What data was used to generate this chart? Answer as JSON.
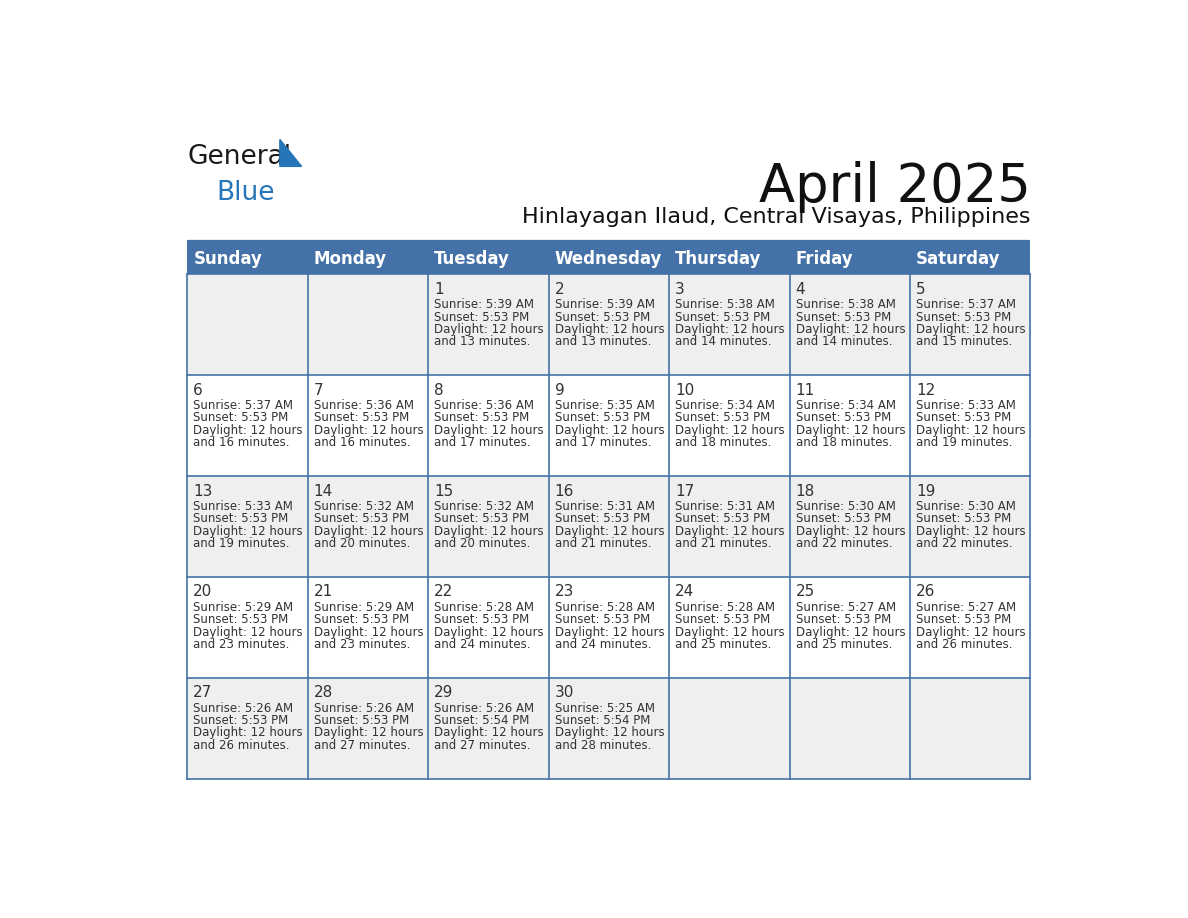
{
  "title": "April 2025",
  "subtitle": "Hinlayagan Ilaud, Central Visayas, Philippines",
  "header_bg_color": "#4472A8",
  "header_text_color": "#FFFFFF",
  "cell_bg_even": "#EFEFEF",
  "cell_bg_odd": "#FFFFFF",
  "border_color": "#4472A8",
  "grid_line_color": "#4472A8",
  "text_color": "#333333",
  "logo_black": "#1a1a1a",
  "logo_blue": "#2575B8",
  "tri_blue": "#2575B8",
  "day_headers": [
    "Sunday",
    "Monday",
    "Tuesday",
    "Wednesday",
    "Thursday",
    "Friday",
    "Saturday"
  ],
  "days": [
    {
      "date": 1,
      "col": 2,
      "row": 0,
      "sunrise": "5:39 AM",
      "sunset": "5:53 PM",
      "daylight_hours": 12,
      "daylight_minutes": 13
    },
    {
      "date": 2,
      "col": 3,
      "row": 0,
      "sunrise": "5:39 AM",
      "sunset": "5:53 PM",
      "daylight_hours": 12,
      "daylight_minutes": 13
    },
    {
      "date": 3,
      "col": 4,
      "row": 0,
      "sunrise": "5:38 AM",
      "sunset": "5:53 PM",
      "daylight_hours": 12,
      "daylight_minutes": 14
    },
    {
      "date": 4,
      "col": 5,
      "row": 0,
      "sunrise": "5:38 AM",
      "sunset": "5:53 PM",
      "daylight_hours": 12,
      "daylight_minutes": 14
    },
    {
      "date": 5,
      "col": 6,
      "row": 0,
      "sunrise": "5:37 AM",
      "sunset": "5:53 PM",
      "daylight_hours": 12,
      "daylight_minutes": 15
    },
    {
      "date": 6,
      "col": 0,
      "row": 1,
      "sunrise": "5:37 AM",
      "sunset": "5:53 PM",
      "daylight_hours": 12,
      "daylight_minutes": 16
    },
    {
      "date": 7,
      "col": 1,
      "row": 1,
      "sunrise": "5:36 AM",
      "sunset": "5:53 PM",
      "daylight_hours": 12,
      "daylight_minutes": 16
    },
    {
      "date": 8,
      "col": 2,
      "row": 1,
      "sunrise": "5:36 AM",
      "sunset": "5:53 PM",
      "daylight_hours": 12,
      "daylight_minutes": 17
    },
    {
      "date": 9,
      "col": 3,
      "row": 1,
      "sunrise": "5:35 AM",
      "sunset": "5:53 PM",
      "daylight_hours": 12,
      "daylight_minutes": 17
    },
    {
      "date": 10,
      "col": 4,
      "row": 1,
      "sunrise": "5:34 AM",
      "sunset": "5:53 PM",
      "daylight_hours": 12,
      "daylight_minutes": 18
    },
    {
      "date": 11,
      "col": 5,
      "row": 1,
      "sunrise": "5:34 AM",
      "sunset": "5:53 PM",
      "daylight_hours": 12,
      "daylight_minutes": 18
    },
    {
      "date": 12,
      "col": 6,
      "row": 1,
      "sunrise": "5:33 AM",
      "sunset": "5:53 PM",
      "daylight_hours": 12,
      "daylight_minutes": 19
    },
    {
      "date": 13,
      "col": 0,
      "row": 2,
      "sunrise": "5:33 AM",
      "sunset": "5:53 PM",
      "daylight_hours": 12,
      "daylight_minutes": 19
    },
    {
      "date": 14,
      "col": 1,
      "row": 2,
      "sunrise": "5:32 AM",
      "sunset": "5:53 PM",
      "daylight_hours": 12,
      "daylight_minutes": 20
    },
    {
      "date": 15,
      "col": 2,
      "row": 2,
      "sunrise": "5:32 AM",
      "sunset": "5:53 PM",
      "daylight_hours": 12,
      "daylight_minutes": 20
    },
    {
      "date": 16,
      "col": 3,
      "row": 2,
      "sunrise": "5:31 AM",
      "sunset": "5:53 PM",
      "daylight_hours": 12,
      "daylight_minutes": 21
    },
    {
      "date": 17,
      "col": 4,
      "row": 2,
      "sunrise": "5:31 AM",
      "sunset": "5:53 PM",
      "daylight_hours": 12,
      "daylight_minutes": 21
    },
    {
      "date": 18,
      "col": 5,
      "row": 2,
      "sunrise": "5:30 AM",
      "sunset": "5:53 PM",
      "daylight_hours": 12,
      "daylight_minutes": 22
    },
    {
      "date": 19,
      "col": 6,
      "row": 2,
      "sunrise": "5:30 AM",
      "sunset": "5:53 PM",
      "daylight_hours": 12,
      "daylight_minutes": 22
    },
    {
      "date": 20,
      "col": 0,
      "row": 3,
      "sunrise": "5:29 AM",
      "sunset": "5:53 PM",
      "daylight_hours": 12,
      "daylight_minutes": 23
    },
    {
      "date": 21,
      "col": 1,
      "row": 3,
      "sunrise": "5:29 AM",
      "sunset": "5:53 PM",
      "daylight_hours": 12,
      "daylight_minutes": 23
    },
    {
      "date": 22,
      "col": 2,
      "row": 3,
      "sunrise": "5:28 AM",
      "sunset": "5:53 PM",
      "daylight_hours": 12,
      "daylight_minutes": 24
    },
    {
      "date": 23,
      "col": 3,
      "row": 3,
      "sunrise": "5:28 AM",
      "sunset": "5:53 PM",
      "daylight_hours": 12,
      "daylight_minutes": 24
    },
    {
      "date": 24,
      "col": 4,
      "row": 3,
      "sunrise": "5:28 AM",
      "sunset": "5:53 PM",
      "daylight_hours": 12,
      "daylight_minutes": 25
    },
    {
      "date": 25,
      "col": 5,
      "row": 3,
      "sunrise": "5:27 AM",
      "sunset": "5:53 PM",
      "daylight_hours": 12,
      "daylight_minutes": 25
    },
    {
      "date": 26,
      "col": 6,
      "row": 3,
      "sunrise": "5:27 AM",
      "sunset": "5:53 PM",
      "daylight_hours": 12,
      "daylight_minutes": 26
    },
    {
      "date": 27,
      "col": 0,
      "row": 4,
      "sunrise": "5:26 AM",
      "sunset": "5:53 PM",
      "daylight_hours": 12,
      "daylight_minutes": 26
    },
    {
      "date": 28,
      "col": 1,
      "row": 4,
      "sunrise": "5:26 AM",
      "sunset": "5:53 PM",
      "daylight_hours": 12,
      "daylight_minutes": 27
    },
    {
      "date": 29,
      "col": 2,
      "row": 4,
      "sunrise": "5:26 AM",
      "sunset": "5:54 PM",
      "daylight_hours": 12,
      "daylight_minutes": 27
    },
    {
      "date": 30,
      "col": 3,
      "row": 4,
      "sunrise": "5:25 AM",
      "sunset": "5:54 PM",
      "daylight_hours": 12,
      "daylight_minutes": 28
    }
  ]
}
